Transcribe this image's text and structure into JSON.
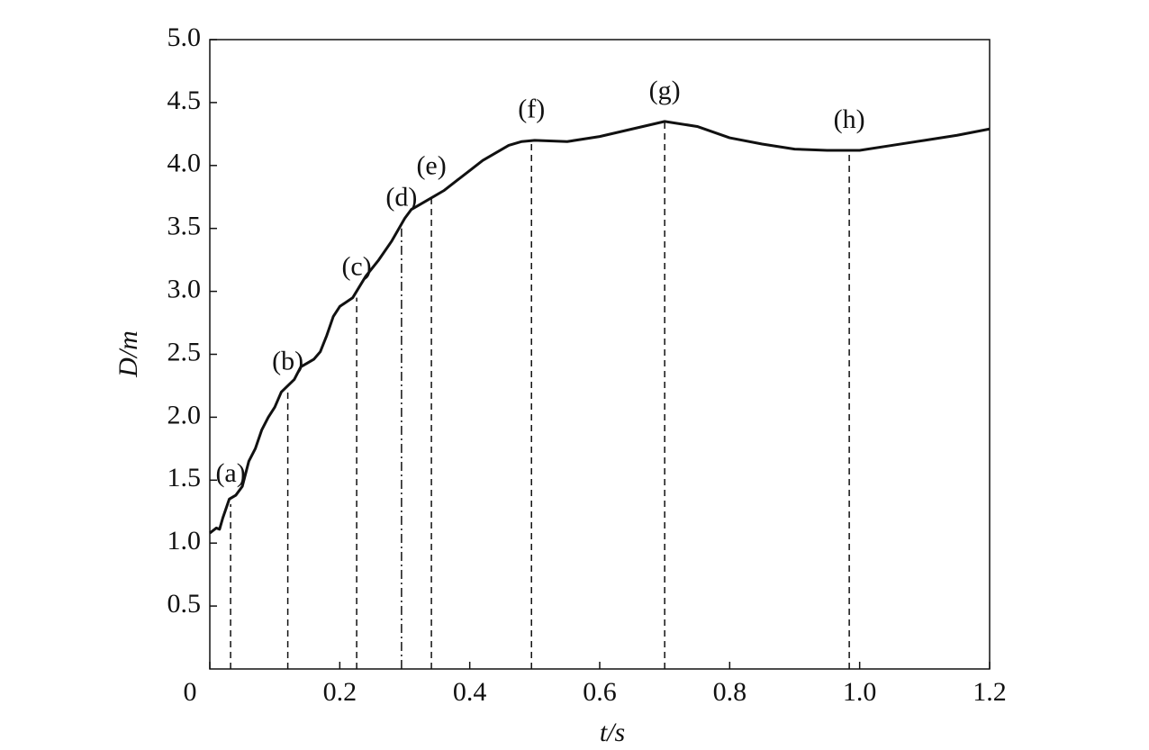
{
  "chart_data": {
    "type": "line",
    "x_label": "t/s",
    "y_label": "D/m",
    "x": [
      0,
      0.01,
      0.015,
      0.02,
      0.03,
      0.04,
      0.05,
      0.06,
      0.07,
      0.08,
      0.09,
      0.1,
      0.11,
      0.12,
      0.13,
      0.14,
      0.15,
      0.16,
      0.17,
      0.18,
      0.19,
      0.2,
      0.22,
      0.24,
      0.26,
      0.28,
      0.3,
      0.31,
      0.32,
      0.34,
      0.36,
      0.38,
      0.4,
      0.42,
      0.44,
      0.46,
      0.48,
      0.5,
      0.55,
      0.6,
      0.65,
      0.7,
      0.75,
      0.8,
      0.85,
      0.9,
      0.95,
      1.0,
      1.05,
      1.1,
      1.15,
      1.2
    ],
    "values": [
      1.08,
      1.12,
      1.11,
      1.2,
      1.35,
      1.38,
      1.45,
      1.65,
      1.75,
      1.9,
      2.0,
      2.08,
      2.2,
      2.25,
      2.3,
      2.4,
      2.43,
      2.46,
      2.52,
      2.65,
      2.8,
      2.88,
      2.95,
      3.12,
      3.25,
      3.4,
      3.58,
      3.65,
      3.68,
      3.74,
      3.8,
      3.88,
      3.96,
      4.04,
      4.1,
      4.16,
      4.19,
      4.2,
      4.19,
      4.23,
      4.29,
      4.35,
      4.31,
      4.22,
      4.17,
      4.13,
      4.12,
      4.12,
      4.16,
      4.2,
      4.24,
      4.29
    ],
    "color": "#111111",
    "xlim": [
      0,
      1.2
    ],
    "ylim": [
      0,
      5
    ],
    "xticks": [
      0,
      0.2,
      0.4,
      0.6,
      0.8,
      {
        "value": 1.0,
        "label": "1.0"
      },
      1.2
    ],
    "yticks": [
      0.5,
      {
        "value": 1.0,
        "label": "1.0"
      },
      1.5,
      {
        "value": 2.0,
        "label": "2.0"
      },
      2.5,
      {
        "value": 3.0,
        "label": "3.0"
      },
      3.5,
      {
        "value": 4.0,
        "label": "4.0"
      },
      4.5,
      {
        "value": 5.0,
        "label": "5.0"
      }
    ],
    "grid": false,
    "annotations": [
      {
        "text": "(a)",
        "x": 0.032,
        "y": 1.31,
        "dash": "dashed"
      },
      {
        "text": "(b)",
        "x": 0.12,
        "y": 2.2,
        "dash": "dashed"
      },
      {
        "text": "(c)",
        "x": 0.226,
        "y": 2.95,
        "dash": "dashed"
      },
      {
        "text": "(d)",
        "x": 0.295,
        "y": 3.5,
        "dash": "dashdot"
      },
      {
        "text": "(e)",
        "x": 0.341,
        "y": 3.75,
        "dash": "dashed"
      },
      {
        "text": "(f)",
        "x": 0.495,
        "y": 4.2,
        "dash": "dashed"
      },
      {
        "text": "(g)",
        "x": 0.7,
        "y": 4.35,
        "dash": "dashed"
      },
      {
        "text": "(h)",
        "x": 0.984,
        "y": 4.12,
        "dash": "dashed"
      }
    ]
  }
}
